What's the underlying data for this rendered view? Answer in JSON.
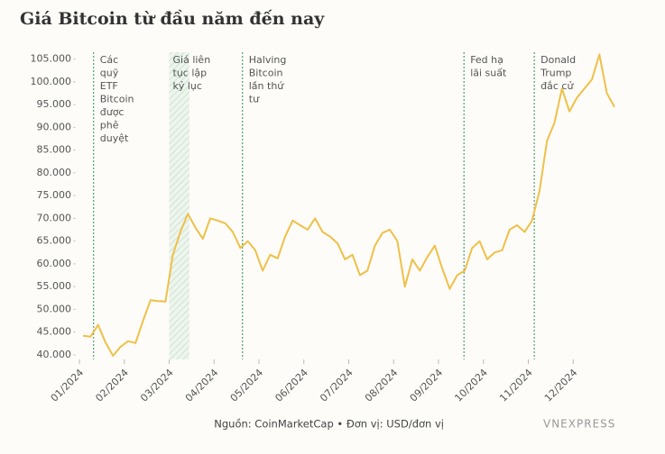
{
  "chart_data": {
    "type": "line",
    "title": "Giá Bitcoin từ đầu năm đến nay",
    "categories": [
      "01/2024",
      null,
      null,
      null,
      null,
      null,
      "02/2024",
      null,
      null,
      null,
      null,
      null,
      "03/2024",
      null,
      null,
      null,
      null,
      null,
      "04/2024",
      null,
      null,
      null,
      null,
      null,
      "05/2024",
      null,
      null,
      null,
      null,
      null,
      "06/2024",
      null,
      null,
      null,
      null,
      null,
      "07/2024",
      null,
      null,
      null,
      null,
      null,
      "08/2024",
      null,
      null,
      null,
      null,
      null,
      "09/2024",
      null,
      null,
      null,
      null,
      null,
      "10/2024",
      null,
      null,
      null,
      null,
      null,
      "11/2024",
      null,
      null,
      null,
      null,
      null,
      "12/2024",
      null,
      null,
      null,
      null,
      null
    ],
    "values": [
      44200,
      44000,
      46600,
      42700,
      39800,
      41800,
      43000,
      42600,
      47500,
      52000,
      51800,
      51700,
      62000,
      67000,
      71000,
      68000,
      65500,
      70000,
      69500,
      68900,
      67000,
      63500,
      65000,
      63000,
      58500,
      62000,
      61200,
      66000,
      69500,
      68500,
      67500,
      70000,
      67000,
      66000,
      64500,
      61000,
      62000,
      57500,
      58500,
      64000,
      66800,
      67500,
      65000,
      55000,
      61000,
      58500,
      61500,
      64000,
      59000,
      54500,
      57500,
      58500,
      63500,
      65000,
      61000,
      62500,
      63000,
      67500,
      68500,
      67000,
      69500,
      76000,
      87000,
      91000,
      98500,
      93500,
      96500,
      98500,
      100500,
      106000,
      97500,
      94500
    ],
    "color": "#efc04a",
    "ylim": [
      39000,
      106500
    ],
    "yticks": [
      {
        "value": 40000,
        "label": "40.000"
      },
      {
        "value": 45000,
        "label": "45.000"
      },
      {
        "value": 50000,
        "label": "50.000"
      },
      {
        "value": 55000,
        "label": "55.000"
      },
      {
        "value": 60000,
        "label": "60.000"
      },
      {
        "value": 65000,
        "label": "65.000"
      },
      {
        "value": 70000,
        "label": "70.000"
      },
      {
        "value": 75000,
        "label": "75.000"
      },
      {
        "value": 80000,
        "label": "80.000"
      },
      {
        "value": 85000,
        "label": "85.000"
      },
      {
        "value": 90000,
        "label": "90.000"
      },
      {
        "value": 95000,
        "label": "95.000"
      },
      {
        "value": 100000,
        "label": "100.000"
      },
      {
        "value": 105000,
        "label": "105.000"
      }
    ],
    "annotations": [
      {
        "lines": [
          "Các",
          "quỹ",
          "ETF",
          "Bitcoin",
          "được",
          "phê",
          "duyệt"
        ]
      },
      {
        "lines": [
          "Giá liên",
          "tục lập",
          "kỷ lục"
        ]
      },
      {
        "lines": [
          "Halving",
          "Bitcoin",
          "lần thứ",
          "tư"
        ]
      },
      {
        "lines": [
          "Fed hạ",
          "lãi suất"
        ]
      },
      {
        "lines": [
          "Donald",
          "Trump",
          "đắc cử"
        ]
      }
    ],
    "source": "Nguồn: CoinMarketCap • Đơn vị: USD/đơn vị",
    "logo": "VNEXPRESS"
  }
}
